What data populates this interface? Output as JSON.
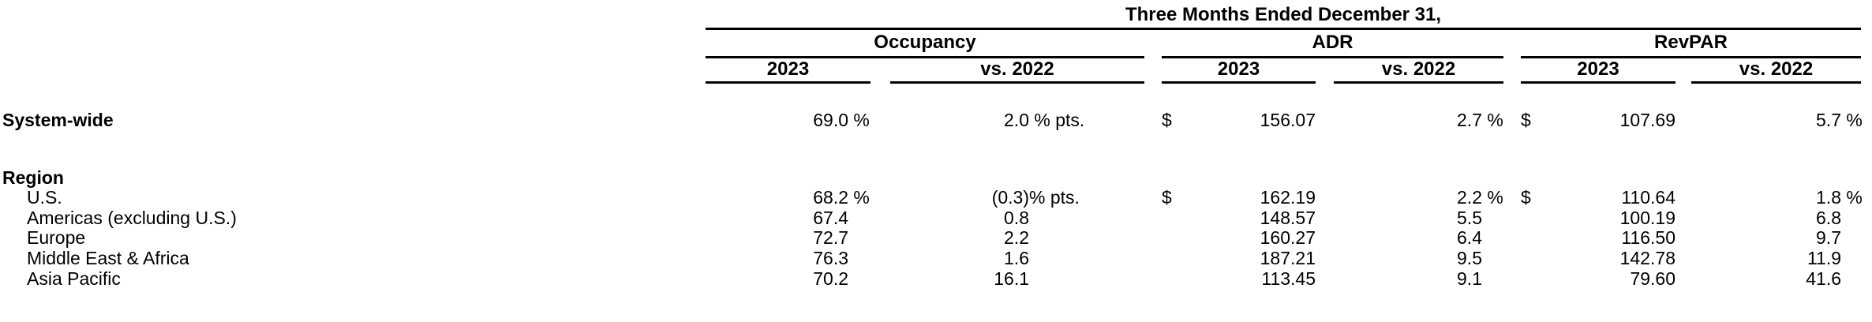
{
  "table": {
    "period_header": "Three Months Ended December 31,",
    "groups": {
      "occupancy": "Occupancy",
      "adr": "ADR",
      "revpar": "RevPAR"
    },
    "subheaders": {
      "y2023": "2023",
      "vs2022": "vs. 2022"
    },
    "rows": [
      {
        "label": "System-wide",
        "occ_2023": "69.0",
        "occ_2023_suffix": " %",
        "occ_vs": "2.0",
        "occ_vs_suffix": " % pts.",
        "adr_dollar": "$",
        "adr_2023": "156.07",
        "adr_vs": "2.7",
        "adr_vs_suffix": " %",
        "rev_dollar": "$",
        "rev_2023": "107.69",
        "rev_vs": "5.7",
        "rev_vs_suffix": " %"
      },
      {
        "label": "Region"
      },
      {
        "label": "U.S.",
        "occ_2023": "68.2",
        "occ_2023_suffix": " %",
        "occ_vs": "(0.3)",
        "occ_vs_suffix": "% pts.",
        "adr_dollar": "$",
        "adr_2023": "162.19",
        "adr_vs": "2.2",
        "adr_vs_suffix": " %",
        "rev_dollar": "$",
        "rev_2023": "110.64",
        "rev_vs": "1.8",
        "rev_vs_suffix": " %"
      },
      {
        "label": "Americas (excluding U.S.)",
        "occ_2023": "67.4",
        "occ_vs": "0.8",
        "adr_2023": "148.57",
        "adr_vs": "5.5",
        "rev_2023": "100.19",
        "rev_vs": "6.8"
      },
      {
        "label": "Europe",
        "occ_2023": "72.7",
        "occ_vs": "2.2",
        "adr_2023": "160.27",
        "adr_vs": "6.4",
        "rev_2023": "116.50",
        "rev_vs": "9.7"
      },
      {
        "label": "Middle East & Africa",
        "occ_2023": "76.3",
        "occ_vs": "1.6",
        "adr_2023": "187.21",
        "adr_vs": "9.5",
        "rev_2023": "142.78",
        "rev_vs": "11.9"
      },
      {
        "label": "Asia Pacific",
        "occ_2023": "70.2",
        "occ_vs": "16.1",
        "adr_2023": "113.45",
        "adr_vs": "9.1",
        "rev_2023": "79.60",
        "rev_vs": "41.6"
      }
    ]
  }
}
